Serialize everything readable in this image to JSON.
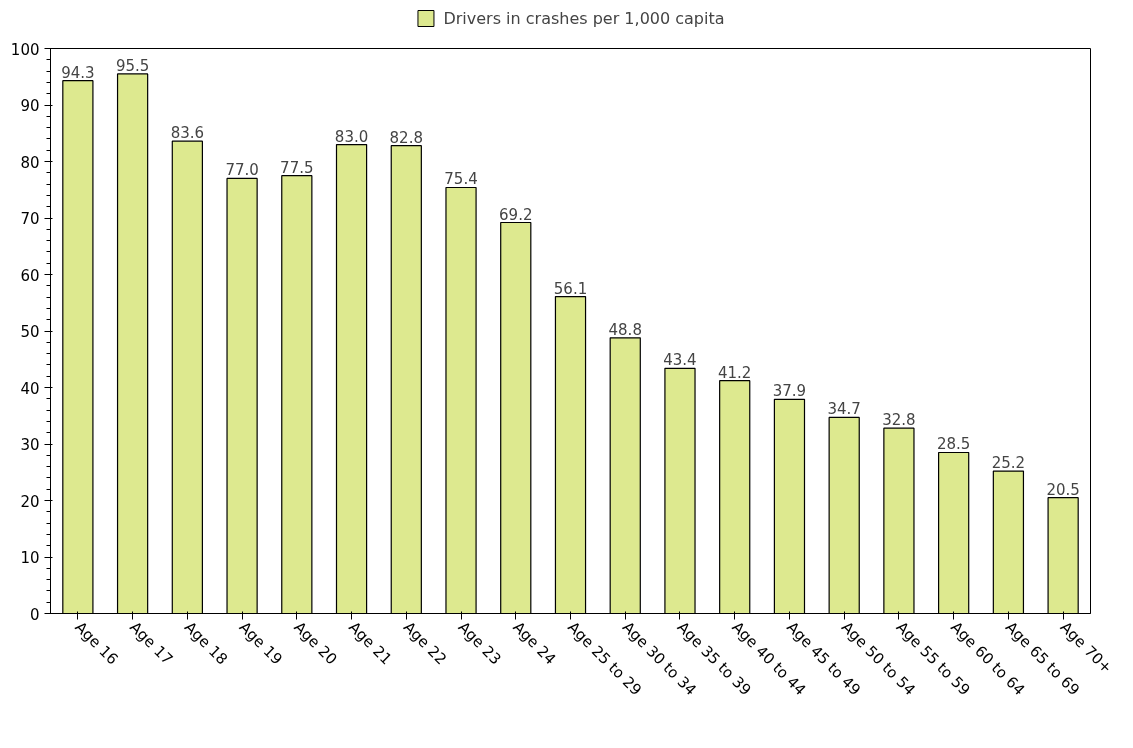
{
  "chart_data": {
    "type": "bar",
    "categories": [
      "Age 16",
      "Age 17",
      "Age 18",
      "Age 19",
      "Age 20",
      "Age 21",
      "Age 22",
      "Age 23",
      "Age 24",
      "Age 25 to 29",
      "Age 30 to 34",
      "Age 35 to 39",
      "Age 40 to 44",
      "Age 45 to 49",
      "Age 50 to 54",
      "Age 55 to 59",
      "Age 60 to 64",
      "Age 65 to 69",
      "Age 70+"
    ],
    "series": [
      {
        "name": "Drivers in crashes per 1,000 capita",
        "color": "#dde98f",
        "values": [
          94.3,
          95.5,
          83.6,
          77.0,
          77.5,
          83.0,
          82.8,
          75.4,
          69.2,
          56.1,
          48.8,
          43.4,
          41.2,
          37.9,
          34.7,
          32.8,
          28.5,
          25.2,
          20.5
        ]
      }
    ],
    "ylim": [
      0,
      100
    ],
    "yticks": [
      0,
      10,
      20,
      30,
      40,
      50,
      60,
      70,
      80,
      90,
      100
    ],
    "value_labels": [
      "94.3",
      "95.5",
      "83.6",
      "77.0",
      "77.5",
      "83.0",
      "82.8",
      "75.4",
      "69.2",
      "56.1",
      "48.8",
      "43.4",
      "41.2",
      "37.9",
      "34.7",
      "32.8",
      "28.5",
      "25.2",
      "20.5"
    ],
    "grid": false,
    "legend": "top"
  }
}
